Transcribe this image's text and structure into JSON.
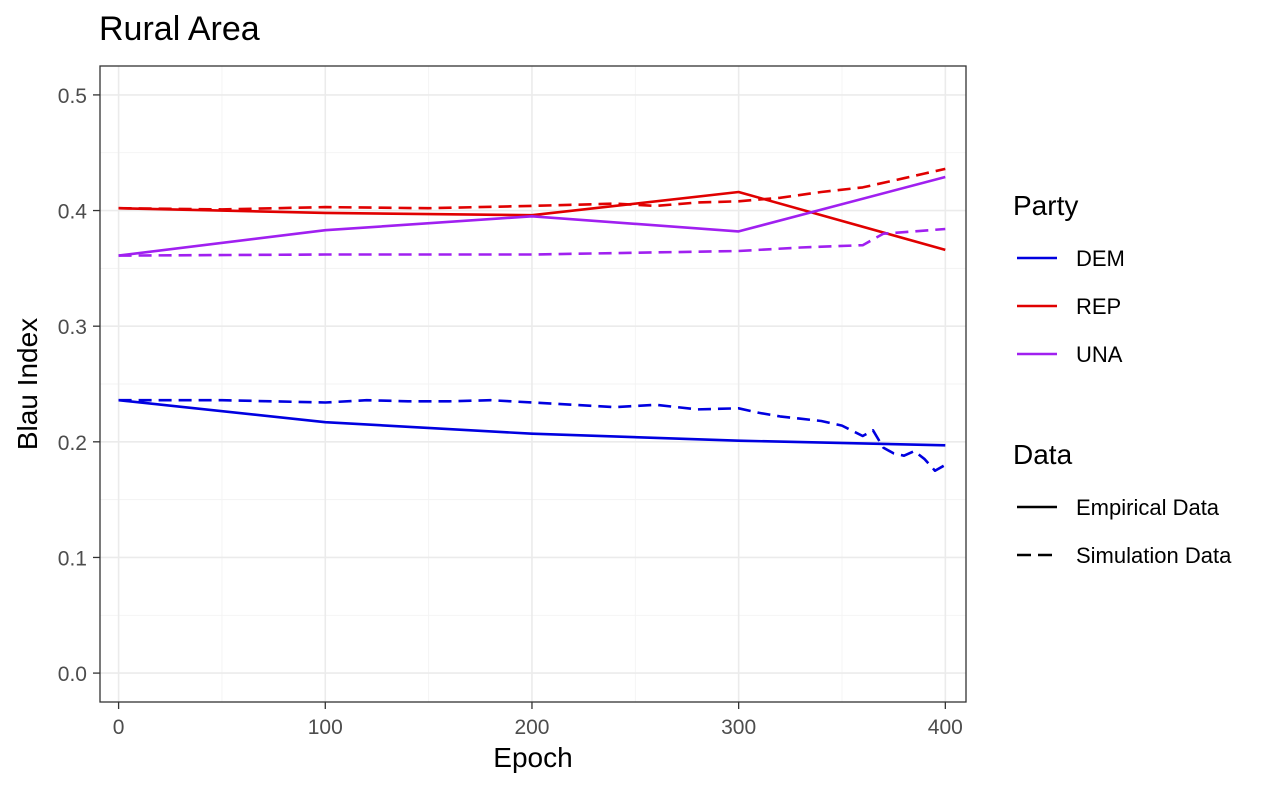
{
  "chart_data": {
    "type": "line",
    "title": "Rural Area",
    "xlabel": "Epoch",
    "ylabel": "Blau Index",
    "xlim": [
      -9,
      410
    ],
    "ylim": [
      -0.025,
      0.525
    ],
    "x_ticks": [
      0,
      100,
      200,
      300,
      400
    ],
    "y_ticks": [
      0.0,
      0.1,
      0.2,
      0.3,
      0.4,
      0.5
    ],
    "x_tick_labels": [
      "0",
      "100",
      "200",
      "300",
      "400"
    ],
    "y_tick_labels": [
      "0.0",
      "0.1",
      "0.2",
      "0.3",
      "0.4",
      "0.5"
    ],
    "grid": true,
    "legend_placement": "right",
    "legends": [
      {
        "title": "Party",
        "entries": [
          {
            "label": "DEM",
            "color": "#0000e0",
            "style": "solid"
          },
          {
            "label": "REP",
            "color": "#e00000",
            "style": "solid"
          },
          {
            "label": "UNA",
            "color": "#a020f0",
            "style": "solid"
          }
        ]
      },
      {
        "title": "Data",
        "entries": [
          {
            "label": "Empirical Data",
            "color": "#000000",
            "style": "solid"
          },
          {
            "label": "Simulation Data",
            "color": "#000000",
            "style": "dashed"
          }
        ]
      }
    ],
    "series": [
      {
        "party": "DEM",
        "data": "Empirical Data",
        "color": "#0000e0",
        "dash": false,
        "x": [
          0,
          100,
          200,
          300,
          400
        ],
        "y": [
          0.236,
          0.217,
          0.207,
          0.201,
          0.197
        ]
      },
      {
        "party": "REP",
        "data": "Empirical Data",
        "color": "#e00000",
        "dash": false,
        "x": [
          0,
          100,
          200,
          300,
          400
        ],
        "y": [
          0.402,
          0.398,
          0.396,
          0.416,
          0.366
        ]
      },
      {
        "party": "UNA",
        "data": "Empirical Data",
        "color": "#a020f0",
        "dash": false,
        "x": [
          0,
          100,
          200,
          300,
          400
        ],
        "y": [
          0.361,
          0.383,
          0.395,
          0.382,
          0.429
        ]
      },
      {
        "party": "DEM",
        "data": "Simulation Data",
        "color": "#0000e0",
        "dash": true,
        "x": [
          0,
          50,
          100,
          120,
          140,
          160,
          180,
          200,
          220,
          240,
          260,
          280,
          300,
          310,
          320,
          330,
          340,
          350,
          360,
          365,
          370,
          375,
          380,
          385,
          390,
          395,
          400
        ],
        "y": [
          0.236,
          0.236,
          0.234,
          0.236,
          0.235,
          0.235,
          0.236,
          0.234,
          0.232,
          0.23,
          0.232,
          0.228,
          0.229,
          0.225,
          0.222,
          0.22,
          0.218,
          0.214,
          0.205,
          0.21,
          0.195,
          0.19,
          0.188,
          0.192,
          0.185,
          0.175,
          0.18
        ]
      },
      {
        "party": "REP",
        "data": "Simulation Data",
        "color": "#e00000",
        "dash": true,
        "x": [
          0,
          50,
          100,
          150,
          200,
          220,
          240,
          260,
          280,
          300,
          320,
          340,
          360,
          380,
          390,
          400
        ],
        "y": [
          0.402,
          0.401,
          0.403,
          0.402,
          0.404,
          0.405,
          0.406,
          0.404,
          0.407,
          0.408,
          0.411,
          0.416,
          0.42,
          0.428,
          0.432,
          0.436
        ]
      },
      {
        "party": "UNA",
        "data": "Simulation Data",
        "color": "#a020f0",
        "dash": true,
        "x": [
          0,
          100,
          200,
          300,
          330,
          360,
          370,
          400
        ],
        "y": [
          0.361,
          0.362,
          0.362,
          0.365,
          0.368,
          0.37,
          0.38,
          0.384
        ]
      }
    ]
  }
}
